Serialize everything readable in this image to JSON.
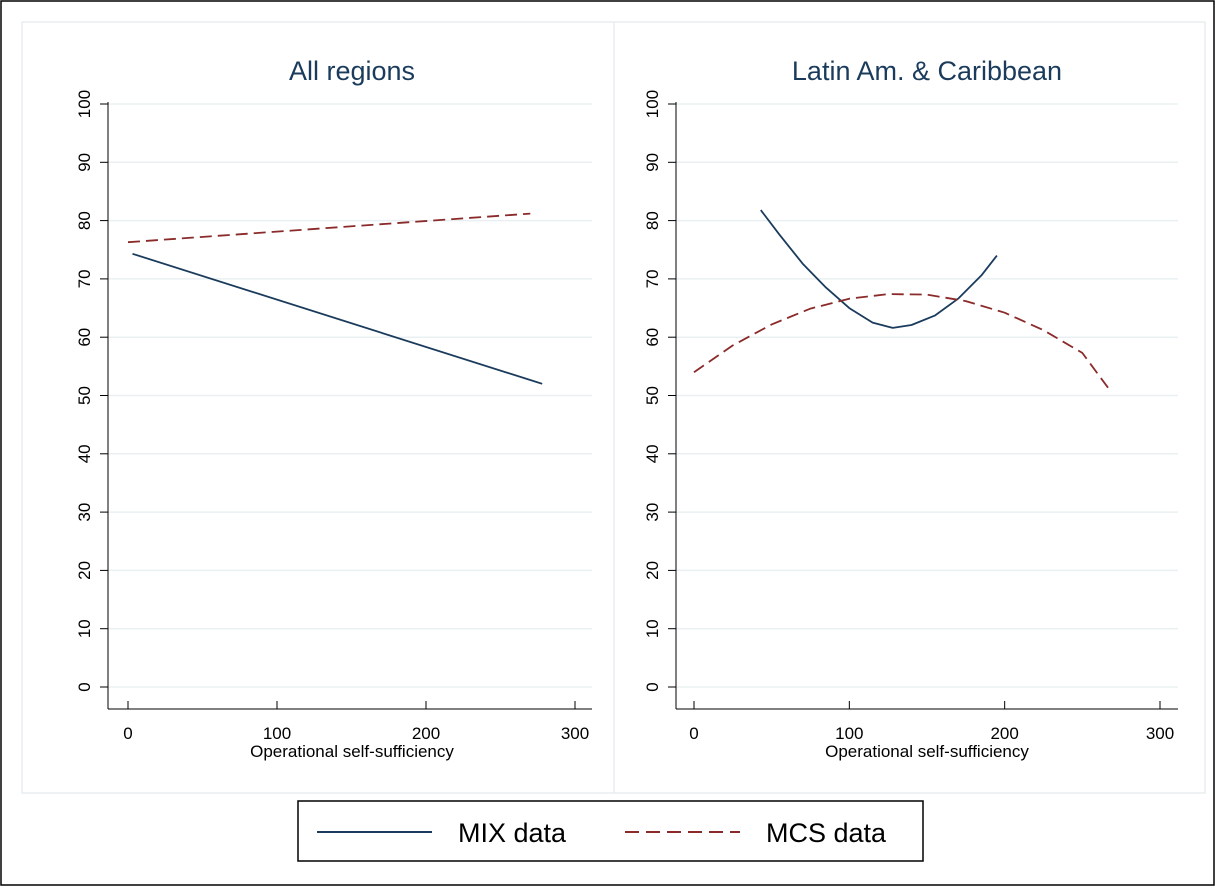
{
  "colors": {
    "mix": "#1a3b5c",
    "mcs": "#8b2a2a",
    "grid": "#eaf0f2",
    "panel_border": "#dfe5e8",
    "axis": "#000000"
  },
  "legend": {
    "entries": [
      {
        "label": "MIX data",
        "style": "solid",
        "color": "#1a3b5c"
      },
      {
        "label": "MCS data",
        "style": "dashed",
        "color": "#8b2a2a"
      }
    ]
  },
  "chart_data": [
    {
      "type": "line",
      "title": "All regions",
      "xlabel": "Operational self-sufficiency",
      "ylabel": "",
      "xlim": [
        0,
        300
      ],
      "ylim": [
        0,
        100
      ],
      "xticks": [
        0,
        100,
        200,
        300
      ],
      "yticks": [
        0,
        10,
        20,
        30,
        40,
        50,
        60,
        70,
        80,
        90,
        100
      ],
      "grid": true,
      "series": [
        {
          "name": "MIX data",
          "style": "solid",
          "x": [
            3,
            278
          ],
          "y": [
            74.3,
            52.0
          ]
        },
        {
          "name": "MCS data",
          "style": "dashed",
          "x": [
            0,
            270
          ],
          "y": [
            76.3,
            81.2
          ]
        }
      ]
    },
    {
      "type": "line",
      "title": "Latin Am. & Caribbean",
      "xlabel": "Operational self-sufficiency",
      "ylabel": "",
      "xlim": [
        0,
        300
      ],
      "ylim": [
        0,
        100
      ],
      "xticks": [
        0,
        100,
        200,
        300
      ],
      "yticks": [
        0,
        10,
        20,
        30,
        40,
        50,
        60,
        70,
        80,
        90,
        100
      ],
      "grid": true,
      "series": [
        {
          "name": "MIX data",
          "style": "solid",
          "x": [
            43,
            55,
            70,
            85,
            100,
            115,
            128,
            140,
            155,
            170,
            185,
            195
          ],
          "y": [
            81.8,
            77.6,
            72.6,
            68.5,
            65.0,
            62.5,
            61.6,
            62.1,
            63.7,
            66.6,
            70.6,
            74.0
          ]
        },
        {
          "name": "MCS data",
          "style": "dashed",
          "x": [
            0,
            25,
            50,
            75,
            100,
            125,
            150,
            175,
            200,
            225,
            250,
            268
          ],
          "y": [
            54.0,
            58.6,
            62.2,
            64.9,
            66.6,
            67.4,
            67.3,
            66.2,
            64.2,
            61.2,
            57.3,
            50.8
          ]
        }
      ]
    }
  ]
}
